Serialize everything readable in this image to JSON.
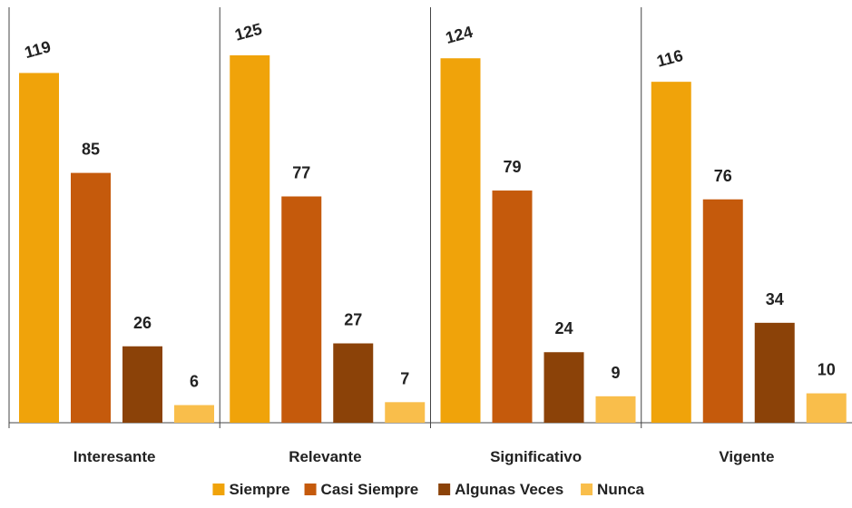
{
  "chart_data": {
    "type": "bar",
    "categories": [
      "Interesante",
      "Relevante",
      "Significativo",
      "Vigente"
    ],
    "series": [
      {
        "name": "Siempre",
        "values": [
          119,
          125,
          124,
          116
        ],
        "color": "#F0A30A"
      },
      {
        "name": "Casi Siempre",
        "values": [
          85,
          77,
          79,
          76
        ],
        "color": "#C55A0C"
      },
      {
        "name": "Algunas Veces",
        "values": [
          26,
          27,
          24,
          34
        ],
        "color": "#8B4208"
      },
      {
        "name": "Nunca",
        "values": [
          6,
          7,
          9,
          10
        ],
        "color": "#F9BE4B"
      }
    ],
    "ylim": [
      0,
      125
    ],
    "legend": "bottom",
    "grid": false
  }
}
